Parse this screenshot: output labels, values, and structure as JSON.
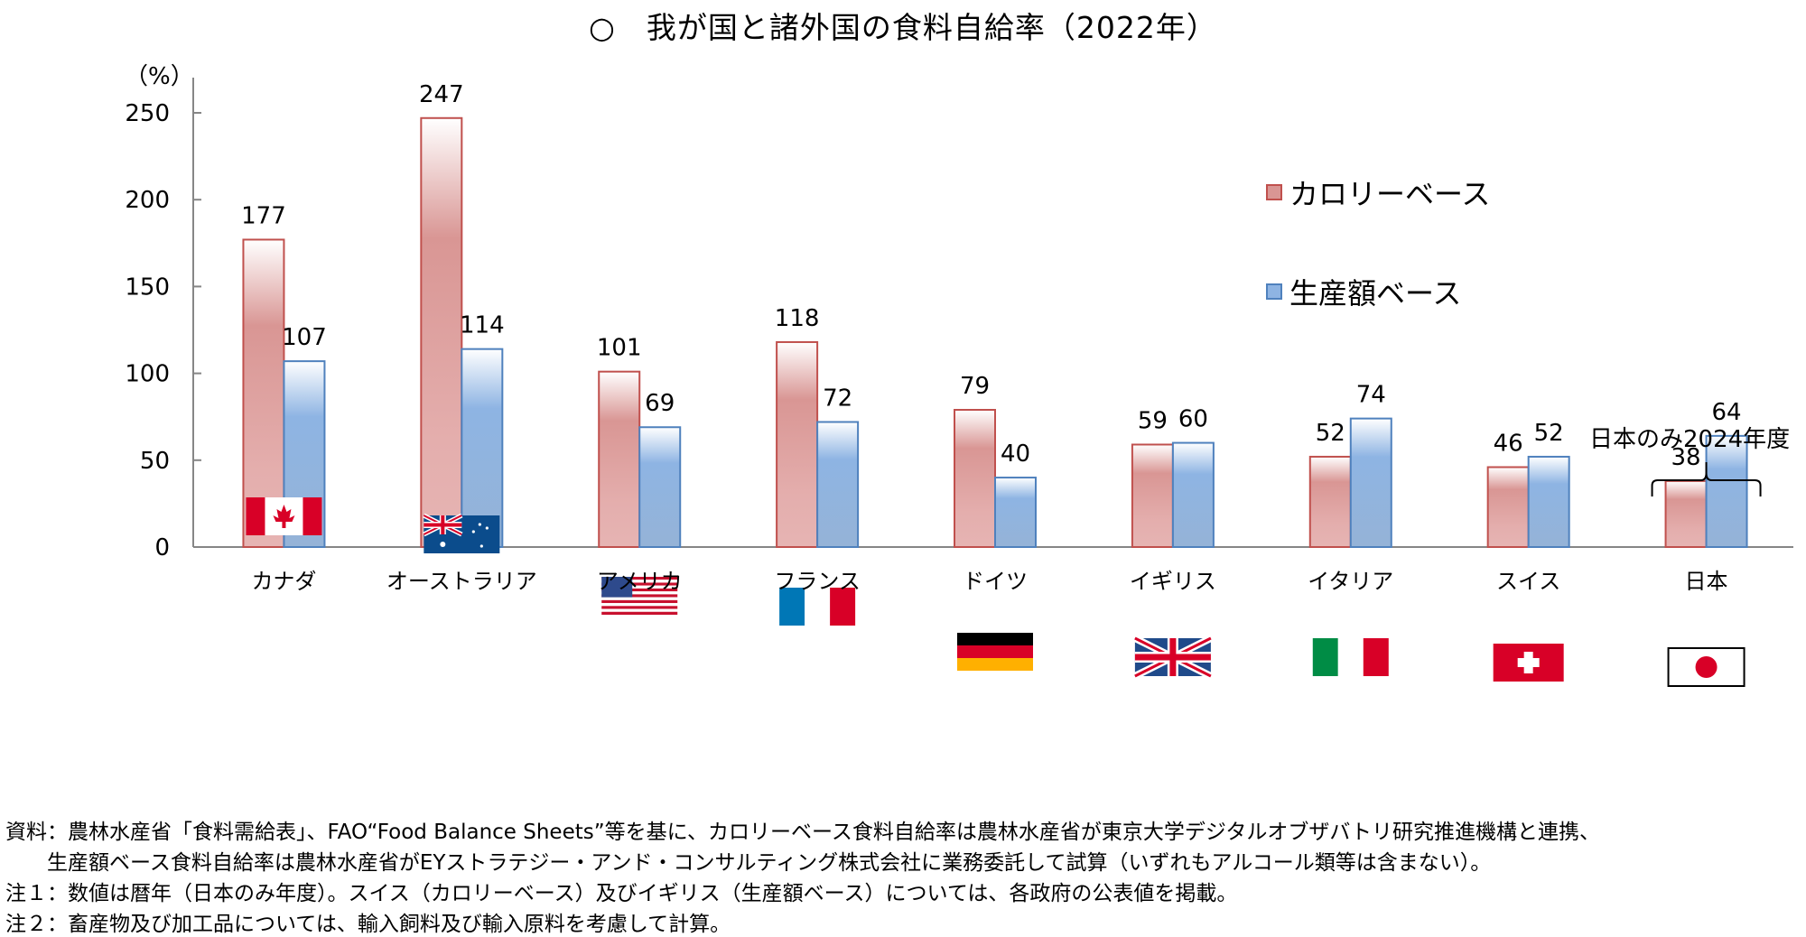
{
  "chart_data": {
    "type": "bar",
    "title": "○　我が国と諸外国の食料自給率（2022年）",
    "ylabel": "（%）",
    "xlabel": "",
    "ylim": [
      0,
      250
    ],
    "yticks": [
      0,
      50,
      100,
      150,
      200,
      250
    ],
    "grid": false,
    "legend_position": "top-right",
    "categories": [
      "カナダ",
      "オーストラリア",
      "アメリカ",
      "フランス",
      "ドイツ",
      "イギリス",
      "イタリア",
      "スイス",
      "日本"
    ],
    "flags": [
      "canada-flag",
      "australia-flag",
      "usa-flag",
      "france-flag",
      "germany-flag",
      "uk-flag",
      "italy-flag",
      "switzerland-flag",
      "japan-flag"
    ],
    "series": [
      {
        "name": "カロリーベース",
        "color": "#D99694",
        "border": "#C0504D",
        "values": [
          177,
          247,
          101,
          118,
          79,
          59,
          52,
          46,
          38
        ]
      },
      {
        "name": "生産額ベース",
        "color": "#8EB4E3",
        "border": "#4F81BD",
        "values": [
          107,
          114,
          69,
          72,
          40,
          60,
          74,
          52,
          64
        ]
      }
    ],
    "annotation": "日本のみ2024年度"
  },
  "footnotes": [
    "資料：農林水産省「食料需給表」、FAO“Food Balance Sheets”等を基に、カロリーベース食料自給率は農林水産省が東京大学デジタルオブザバトリ研究推進機構と連携、",
    "　　生産額ベース食料自給率は農林水産省がEYストラテジー・アンド・コンサルティング株式会社に業務委託して試算（いずれもアルコール類等は含まない）。",
    "注１：数値は暦年（日本のみ年度）。スイス（カロリーベース）及びイギリス（生産額ベース）については、各政府の公表値を掲載。",
    "注２：畜産物及び加工品については、輸入飼料及び輸入原料を考慮して計算。"
  ]
}
